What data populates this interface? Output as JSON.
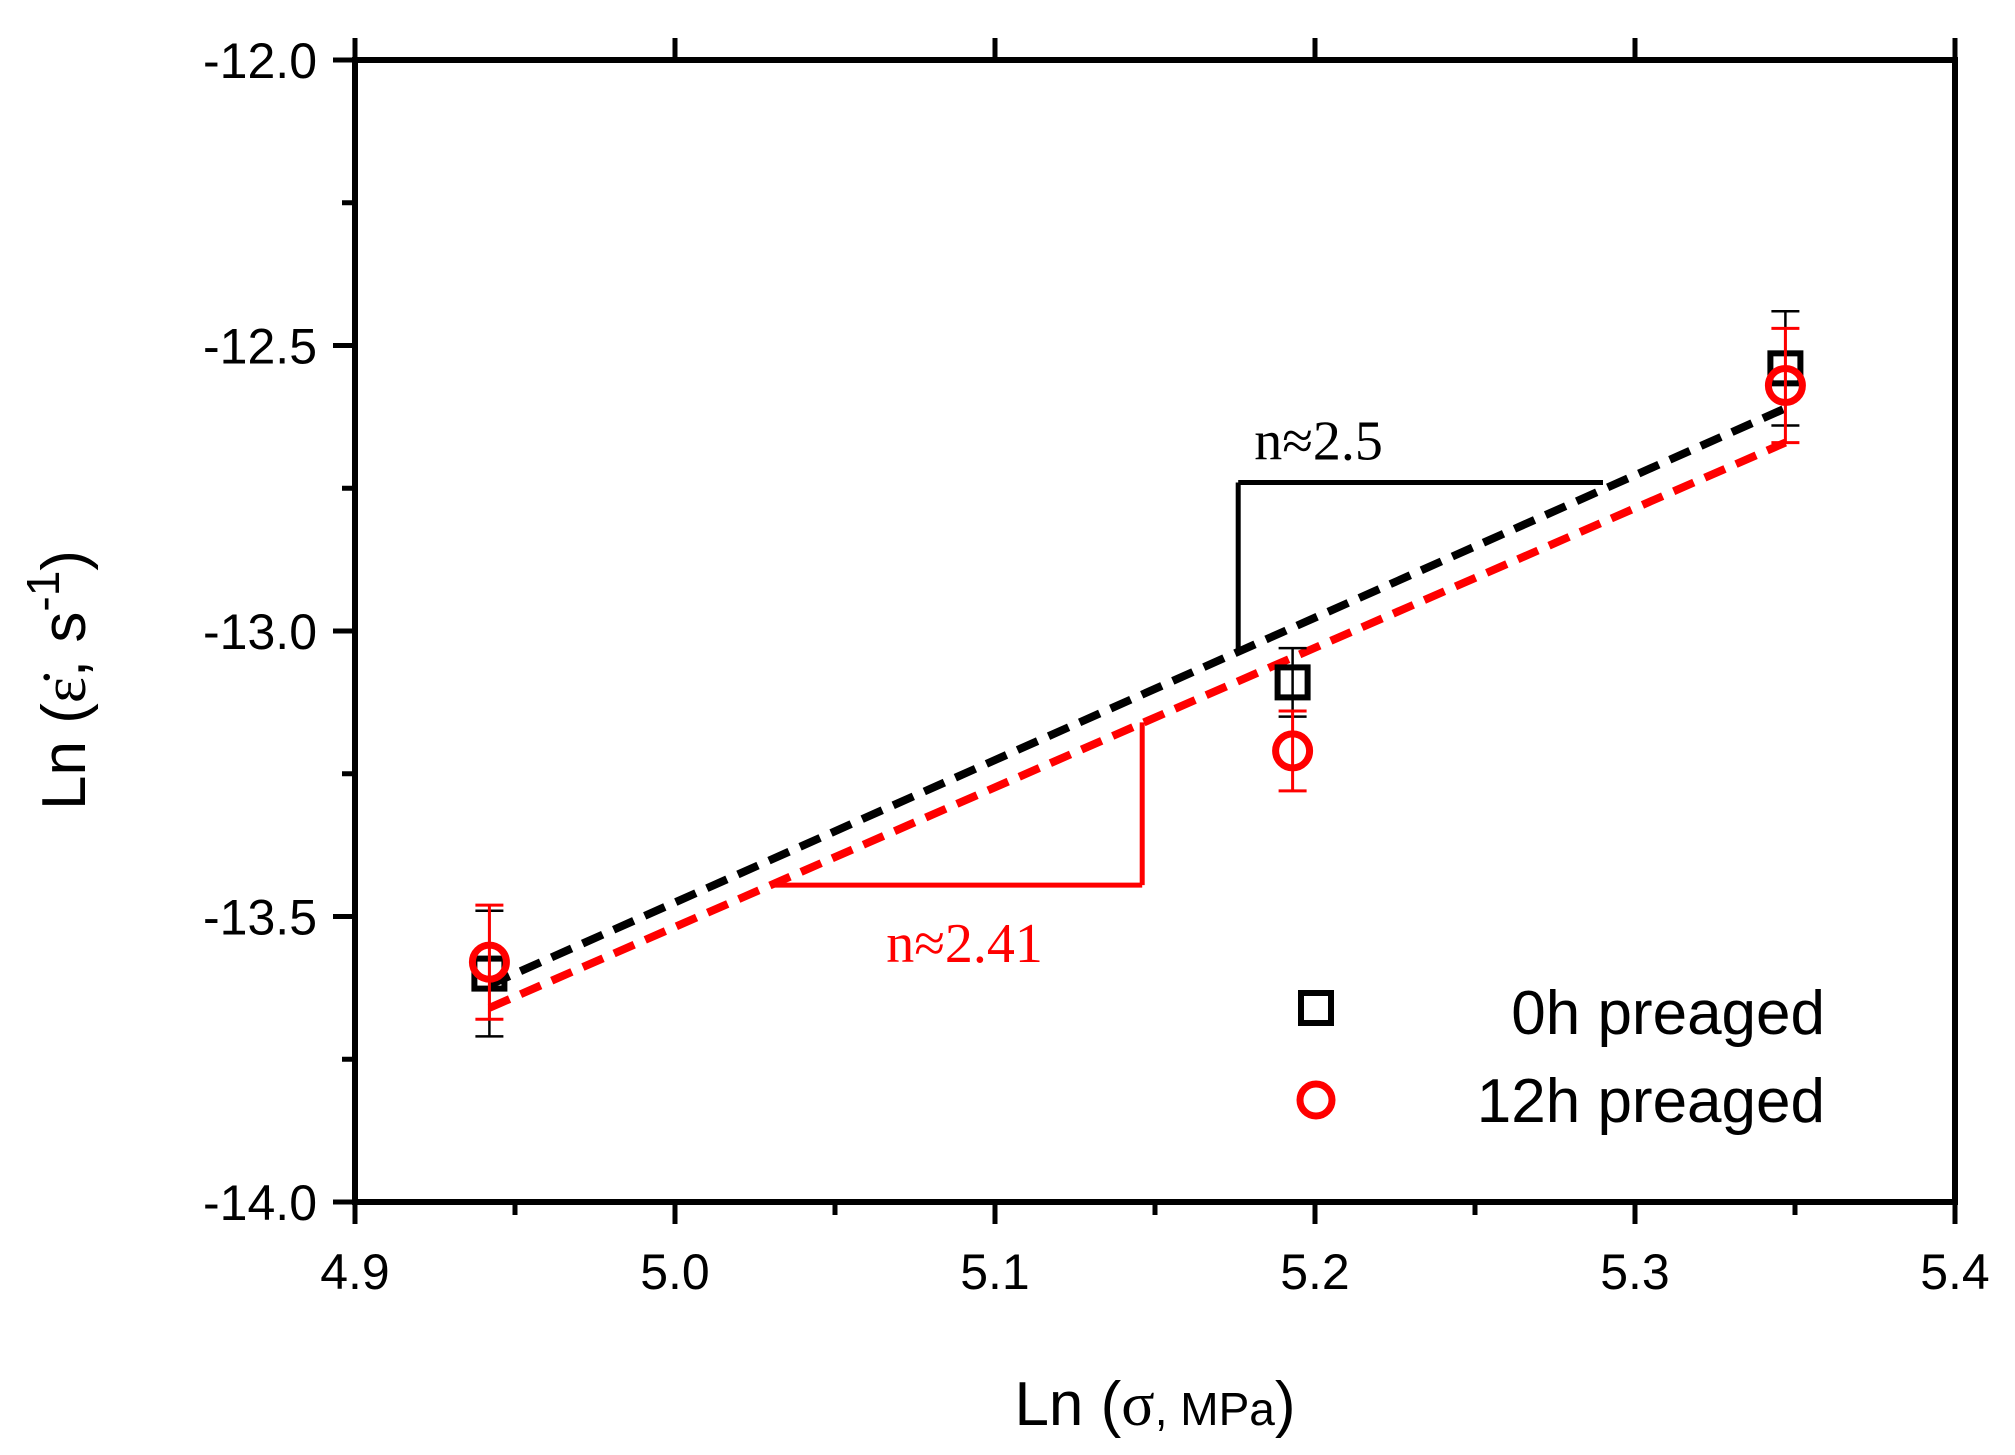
{
  "chart_data": {
    "type": "scatter",
    "title": "",
    "xlabel": "Ln (σ, MPa)",
    "xlabel_parts": {
      "prefix": "Ln (",
      "symbol": "σ",
      "unit": ", MPa",
      "suffix": ")"
    },
    "ylabel": "Ln (ε̇, s⁻¹)",
    "ylabel_parts": {
      "prefix": "Ln (",
      "symbol": "ε̇",
      "unit": ", s",
      "sup": "-1",
      "suffix": ")"
    },
    "xlim": [
      4.9,
      5.4
    ],
    "ylim": [
      -14.0,
      -12.0
    ],
    "x_ticks": [
      4.9,
      5.0,
      5.1,
      5.2,
      5.3,
      5.4
    ],
    "x_tick_labels": [
      "4.9",
      "5.0",
      "5.1",
      "5.2",
      "5.3",
      "5.4"
    ],
    "y_ticks": [
      -14.0,
      -13.5,
      -13.0,
      -12.5,
      -12.0
    ],
    "y_tick_labels": [
      "-14.0",
      "-13.5",
      "-13.0",
      "-12.5",
      "-12.0"
    ],
    "grid": false,
    "legend_position": "bottom-right",
    "series": [
      {
        "name": "0h preaged",
        "marker": "square",
        "color": "#000000",
        "x": [
          4.942,
          5.193,
          5.347
        ],
        "y": [
          -13.6,
          -13.09,
          -12.54
        ],
        "err": [
          0.11,
          0.06,
          0.1
        ],
        "fit": {
          "x": [
            4.942,
            5.347
          ],
          "y": [
            -13.62,
            -12.61
          ]
        }
      },
      {
        "name": "12h preaged",
        "marker": "circle",
        "color": "#ff0000",
        "x": [
          4.942,
          5.193,
          5.347
        ],
        "y": [
          -13.58,
          -13.21,
          -12.57
        ],
        "err": [
          0.1,
          0.07,
          0.1
        ],
        "fit": {
          "x": [
            4.942,
            5.347
          ],
          "y": [
            -13.66,
            -12.67
          ]
        }
      }
    ],
    "annotations": [
      {
        "text": "n≈2.5",
        "color": "#000000",
        "x": 5.181,
        "y": -12.7
      },
      {
        "text": "n≈2.41",
        "color": "#ff0000",
        "x": 5.066,
        "y": -13.58
      }
    ],
    "slope_triangles": [
      {
        "color": "#000000",
        "corner_x": 5.176,
        "corner_y": -12.74,
        "horizontal_to_x": 5.29,
        "vertical_to_y": -13.04
      },
      {
        "color": "#ff0000",
        "corner_x": 5.146,
        "corner_y": -13.445,
        "horizontal_to_x": 5.031,
        "vertical_to_y": -13.16
      }
    ]
  }
}
